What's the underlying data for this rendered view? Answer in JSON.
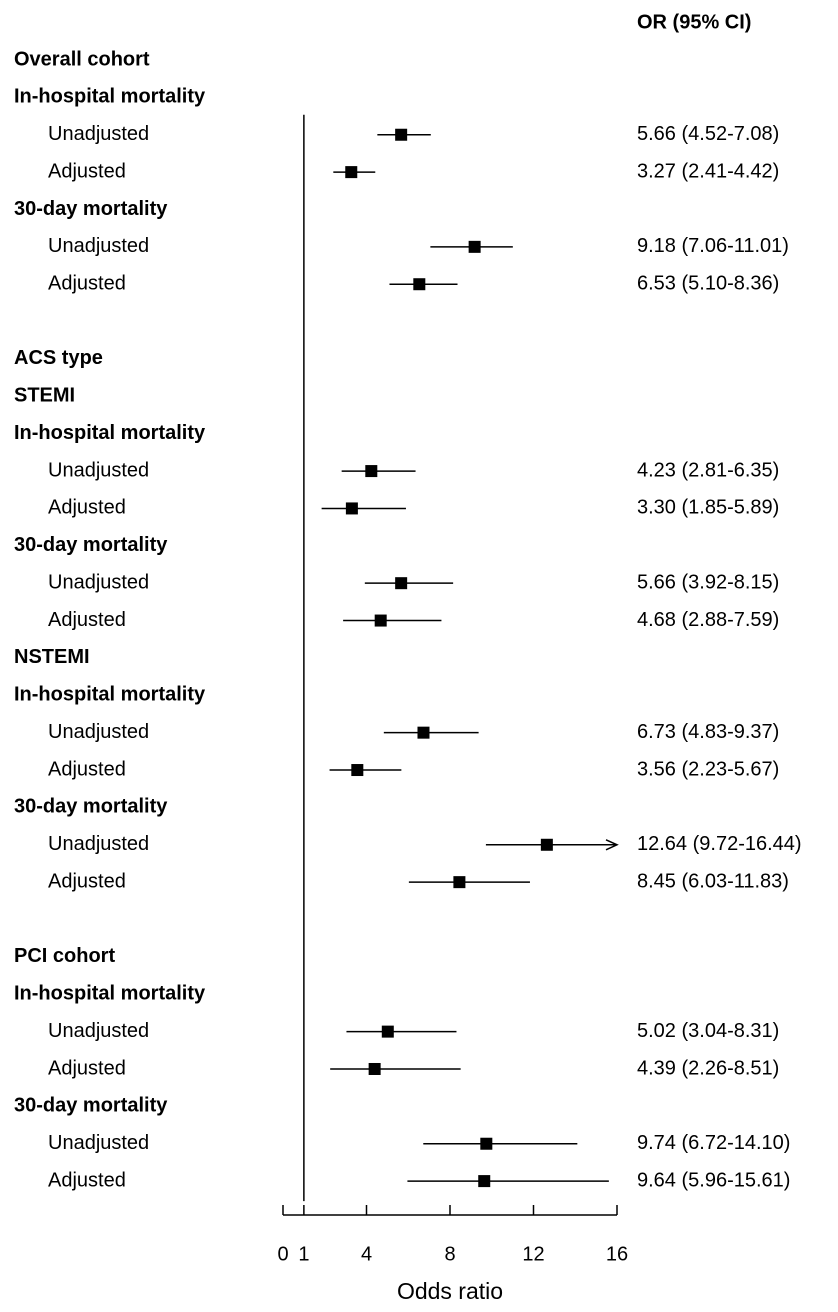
{
  "chart_data": {
    "type": "forest",
    "ci_header": "OR (95% CI)",
    "xlabel": "Odds ratio",
    "xlim": [
      0,
      16
    ],
    "xticks": [
      0,
      1,
      4,
      8,
      12,
      16
    ],
    "reference": 1,
    "color": "#000000",
    "sections": [
      {
        "rows": [
          {
            "label": "Overall cohort"
          },
          {
            "label": "In-hospital mortality"
          },
          {
            "label": "Unadjusted",
            "estimate": 5.66,
            "lower": 4.52,
            "upper": 7.08,
            "ci_label": "5.66 (4.52-7.08)"
          },
          {
            "label": "Adjusted",
            "estimate": 3.27,
            "lower": 2.41,
            "upper": 4.42,
            "ci_label": "3.27 (2.41-4.42)"
          },
          {
            "label": "30-day mortality"
          },
          {
            "label": "Unadjusted",
            "estimate": 9.18,
            "lower": 7.06,
            "upper": 11.01,
            "ci_label": "9.18 (7.06-11.01)"
          },
          {
            "label": "Adjusted",
            "estimate": 6.53,
            "lower": 5.1,
            "upper": 8.36,
            "ci_label": "6.53 (5.10-8.36)"
          }
        ]
      },
      {
        "rows": [
          {
            "label": "ACS type"
          },
          {
            "label": "STEMI"
          },
          {
            "label": "In-hospital mortality"
          },
          {
            "label": "Unadjusted",
            "estimate": 4.23,
            "lower": 2.81,
            "upper": 6.35,
            "ci_label": "4.23 (2.81-6.35)"
          },
          {
            "label": "Adjusted",
            "estimate": 3.3,
            "lower": 1.85,
            "upper": 5.89,
            "ci_label": "3.30 (1.85-5.89)"
          },
          {
            "label": "30-day mortality"
          },
          {
            "label": "Unadjusted",
            "estimate": 5.66,
            "lower": 3.92,
            "upper": 8.15,
            "ci_label": "5.66 (3.92-8.15)"
          },
          {
            "label": "Adjusted",
            "estimate": 4.68,
            "lower": 2.88,
            "upper": 7.59,
            "ci_label": "4.68 (2.88-7.59)"
          },
          {
            "label": "NSTEMI"
          },
          {
            "label": "In-hospital mortality"
          },
          {
            "label": "Unadjusted",
            "estimate": 6.73,
            "lower": 4.83,
            "upper": 9.37,
            "ci_label": "6.73 (4.83-9.37)"
          },
          {
            "label": "Adjusted",
            "estimate": 3.56,
            "lower": 2.23,
            "upper": 5.67,
            "ci_label": "3.56 (2.23-5.67)"
          },
          {
            "label": "30-day mortality"
          },
          {
            "label": "Unadjusted",
            "estimate": 12.64,
            "lower": 9.72,
            "upper": 16.44,
            "ci_label": "12.64 (9.72-16.44)"
          },
          {
            "label": "Adjusted",
            "estimate": 8.45,
            "lower": 6.03,
            "upper": 11.83,
            "ci_label": "8.45 (6.03-11.83)"
          }
        ]
      },
      {
        "rows": [
          {
            "label": "PCI cohort"
          },
          {
            "label": "In-hospital mortality"
          },
          {
            "label": "Unadjusted",
            "estimate": 5.02,
            "lower": 3.04,
            "upper": 8.31,
            "ci_label": "5.02 (3.04-8.31)"
          },
          {
            "label": "Adjusted",
            "estimate": 4.39,
            "lower": 2.26,
            "upper": 8.51,
            "ci_label": "4.39 (2.26-8.51)"
          },
          {
            "label": "30-day mortality"
          },
          {
            "label": "Unadjusted",
            "estimate": 9.74,
            "lower": 6.72,
            "upper": 14.1,
            "ci_label": "9.74 (6.72-14.10)"
          },
          {
            "label": "Adjusted",
            "estimate": 9.64,
            "lower": 5.96,
            "upper": 15.61,
            "ci_label": "9.64 (5.96-15.61)"
          }
        ]
      }
    ]
  }
}
